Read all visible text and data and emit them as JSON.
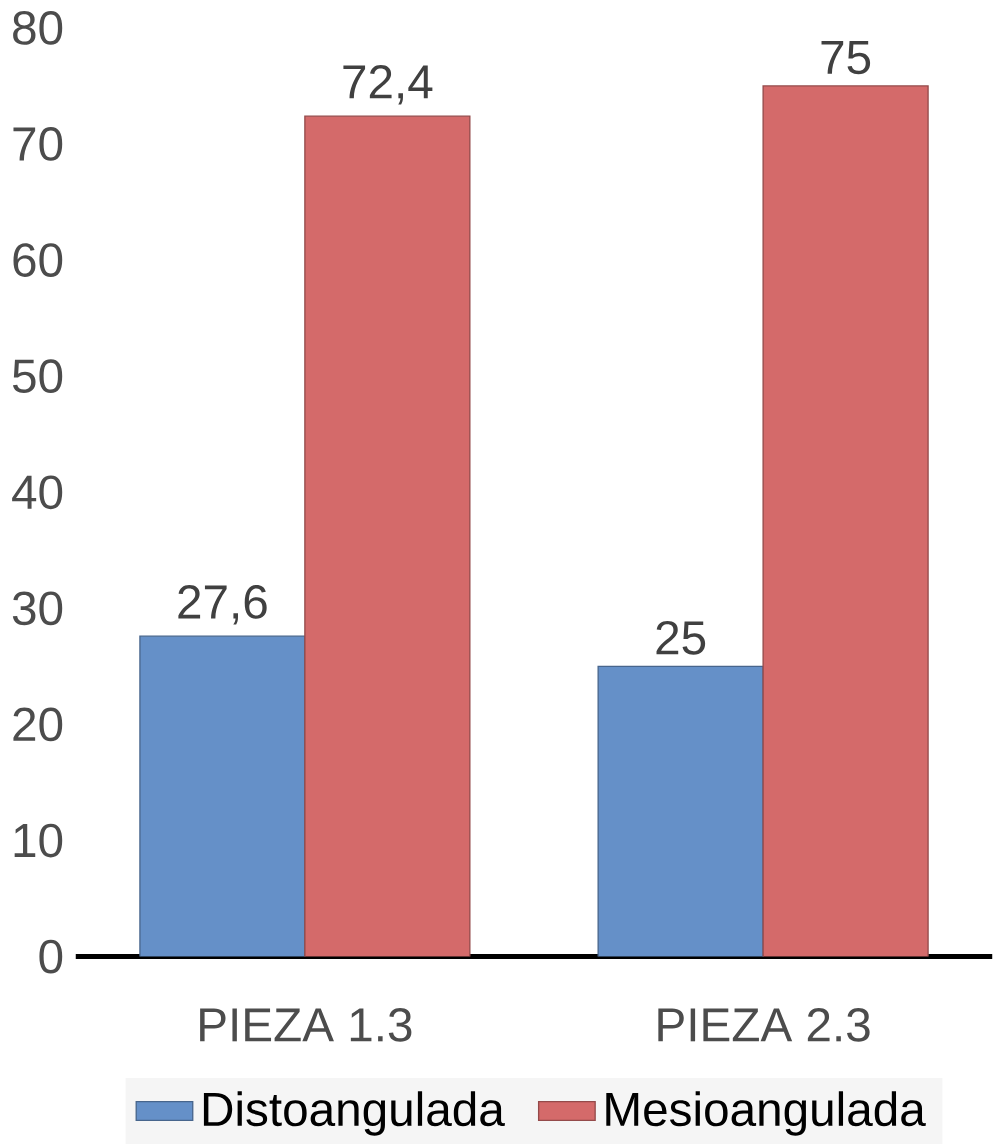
{
  "chart_data": {
    "type": "bar",
    "categories": [
      "PIEZA 1.3",
      "PIEZA 2.3"
    ],
    "series": [
      {
        "name": "Distoangulada",
        "color": "#6590c8",
        "values": [
          27.6,
          25
        ],
        "value_labels": [
          "27,6",
          "25"
        ]
      },
      {
        "name": "Mesioangulada",
        "color": "#d46a6a",
        "values": [
          72.4,
          75
        ],
        "value_labels": [
          "72,4",
          "75"
        ]
      }
    ],
    "ylim": [
      0,
      80
    ],
    "yticks": [
      0,
      10,
      20,
      30,
      40,
      50,
      60,
      70,
      80
    ],
    "grid": false,
    "legend": "bottom"
  }
}
